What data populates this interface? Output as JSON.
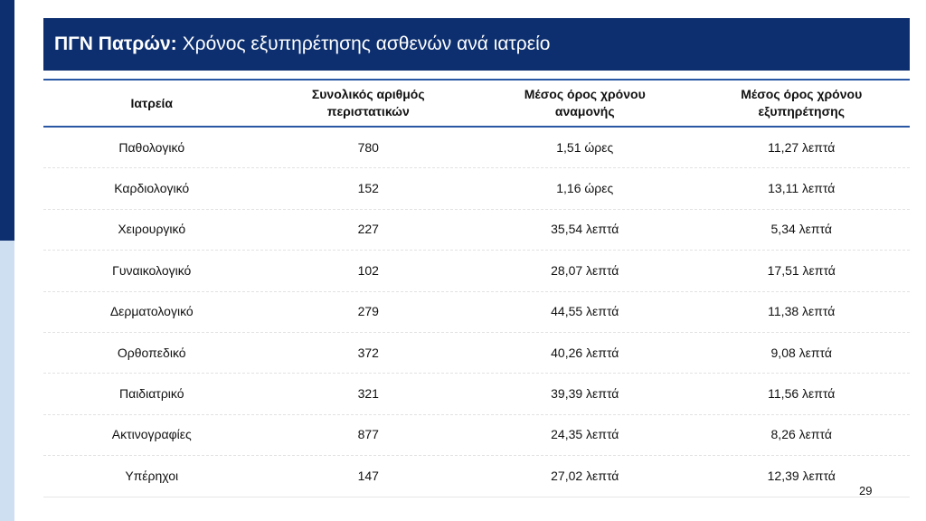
{
  "header": {
    "title_bold": "ΠΓΝ Πατρών:",
    "title_rest": "Χρόνος εξυπηρέτησης ασθενών ανά ιατρείο"
  },
  "table": {
    "columns": [
      "Ιατρεία",
      "Συνολικός αριθμός περιστατικών",
      "Μέσος όρος χρόνου αναμονής",
      "Μέσος όρος χρόνου εξυπηρέτησης"
    ],
    "rows": [
      [
        "Παθολογικό",
        "780",
        "1,51 ώρες",
        "11,27 λεπτά"
      ],
      [
        "Καρδιολογικό",
        "152",
        "1,16 ώρες",
        "13,11 λεπτά"
      ],
      [
        "Χειρουργικό",
        "227",
        "35,54 λεπτά",
        "5,34 λεπτά"
      ],
      [
        "Γυναικολογικό",
        "102",
        "28,07 λεπτά",
        "17,51 λεπτά"
      ],
      [
        "Δερματολογικό",
        "279",
        "44,55 λεπτά",
        "11,38 λεπτά"
      ],
      [
        "Ορθοπεδικό",
        "372",
        "40,26 λεπτά",
        "9,08 λεπτά"
      ],
      [
        "Παιδιατρικό",
        "321",
        "39,39 λεπτά",
        "11,56 λεπτά"
      ],
      [
        "Ακτινογραφίες",
        "877",
        "24,35 λεπτά",
        "8,26 λεπτά"
      ],
      [
        "Υπέρηχοι",
        "147",
        "27,02 λεπτά",
        "12,39 λεπτά"
      ]
    ]
  },
  "page_number": "29"
}
